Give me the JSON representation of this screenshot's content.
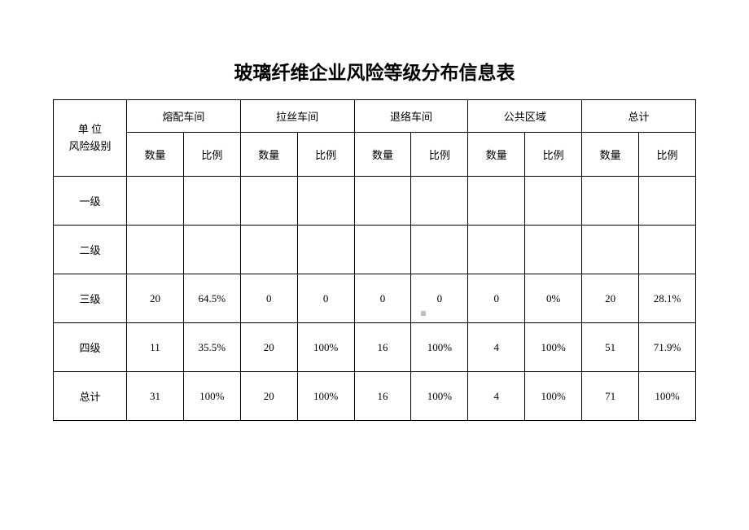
{
  "title": "玻璃纤维企业风险等级分布信息表",
  "row_header": {
    "line1": "单 位",
    "line2": "风险级别"
  },
  "groups": [
    "熔配车间",
    "拉丝车间",
    "退络车间",
    "公共区域",
    "总计"
  ],
  "subheaders": [
    "数量",
    "比例"
  ],
  "rows": [
    {
      "label": "一级",
      "cells": [
        "",
        "",
        "",
        "",
        "",
        "",
        "",
        "",
        "",
        ""
      ]
    },
    {
      "label": "二级",
      "cells": [
        "",
        "",
        "",
        "",
        "",
        "",
        "",
        "",
        "",
        ""
      ]
    },
    {
      "label": "三级",
      "cells": [
        "20",
        "64.5%",
        "0",
        "0",
        "0",
        "0",
        "0",
        "0%",
        "20",
        "28.1%"
      ]
    },
    {
      "label": "四级",
      "cells": [
        "11",
        "35.5%",
        "20",
        "100%",
        "16",
        "100%",
        "4",
        "100%",
        "51",
        "71.9%"
      ]
    },
    {
      "label": "总计",
      "cells": [
        "31",
        "100%",
        "20",
        "100%",
        "16",
        "100%",
        "4",
        "100%",
        "71",
        "100%"
      ]
    }
  ],
  "styling": {
    "background_color": "#ffffff",
    "border_color": "#000000",
    "title_fontsize": 23,
    "cell_fontsize": 13,
    "header_row_height": 40,
    "subheader_row_height": 54,
    "data_row_height": 60,
    "first_col_width": 90,
    "sub_col_width": 70
  }
}
